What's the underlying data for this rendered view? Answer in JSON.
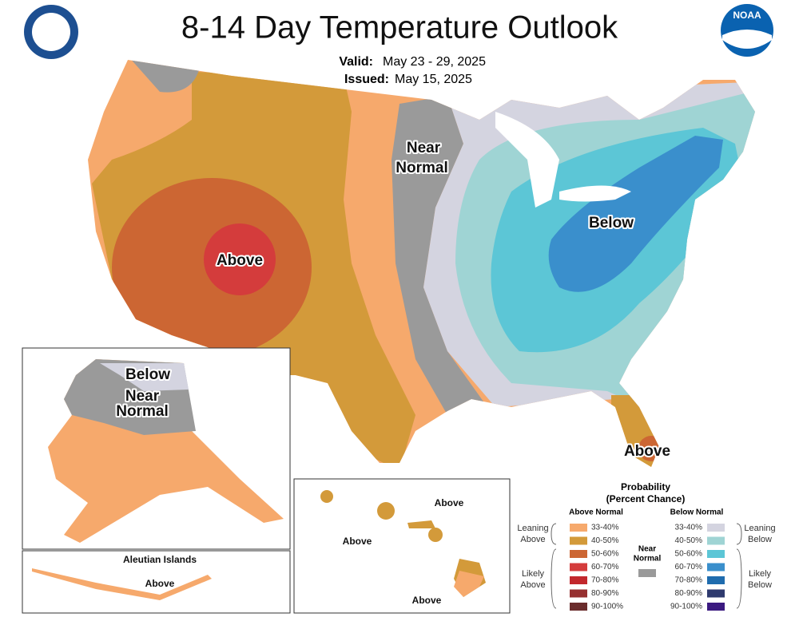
{
  "header": {
    "title": "8-14 Day Temperature Outlook",
    "valid_label": "Valid:",
    "valid_date": "May 23 - 29, 2025",
    "issued_label": "Issued:",
    "issued_date": "May 15, 2025",
    "logo_text": "NOAA"
  },
  "map_labels": {
    "near_normal": [
      "Near",
      "Normal"
    ],
    "above_west": "Above",
    "below_east": "Below",
    "above_florida": "Above",
    "alaska_below": "Below",
    "alaska_near_normal": [
      "Near",
      "Normal"
    ],
    "aleutian_title": "Aleutian Islands",
    "aleutian_above": "Above",
    "hawaii_above": [
      "Above",
      "Above",
      "Above"
    ]
  },
  "legend": {
    "title": "Probability",
    "subtitle": "(Percent Chance)",
    "above_header": "Above Normal",
    "below_header": "Below Normal",
    "near_normal": [
      "Near",
      "Normal"
    ],
    "near_normal_color": "#9a9a9a",
    "leaning_above": [
      "Leaning",
      "Above"
    ],
    "likely_above": [
      "Likely",
      "Above"
    ],
    "leaning_below": [
      "Leaning",
      "Below"
    ],
    "likely_below": [
      "Likely",
      "Below"
    ],
    "above_classes": [
      {
        "label": "33-40%",
        "color": "#f6a96c"
      },
      {
        "label": "40-50%",
        "color": "#d39a3a"
      },
      {
        "label": "50-60%",
        "color": "#cc6633"
      },
      {
        "label": "60-70%",
        "color": "#d43c3c"
      },
      {
        "label": "70-80%",
        "color": "#c2282d"
      },
      {
        "label": "80-90%",
        "color": "#963030"
      },
      {
        "label": "90-100%",
        "color": "#6a2c2c"
      }
    ],
    "below_classes": [
      {
        "label": "33-40%",
        "color": "#d4d4e0"
      },
      {
        "label": "40-50%",
        "color": "#9fd4d4"
      },
      {
        "label": "50-60%",
        "color": "#5cc6d6"
      },
      {
        "label": "60-70%",
        "color": "#3a8fcc"
      },
      {
        "label": "70-80%",
        "color": "#1f6cae"
      },
      {
        "label": "80-90%",
        "color": "#2e3a6e"
      },
      {
        "label": "90-100%",
        "color": "#3b1a80"
      }
    ]
  }
}
